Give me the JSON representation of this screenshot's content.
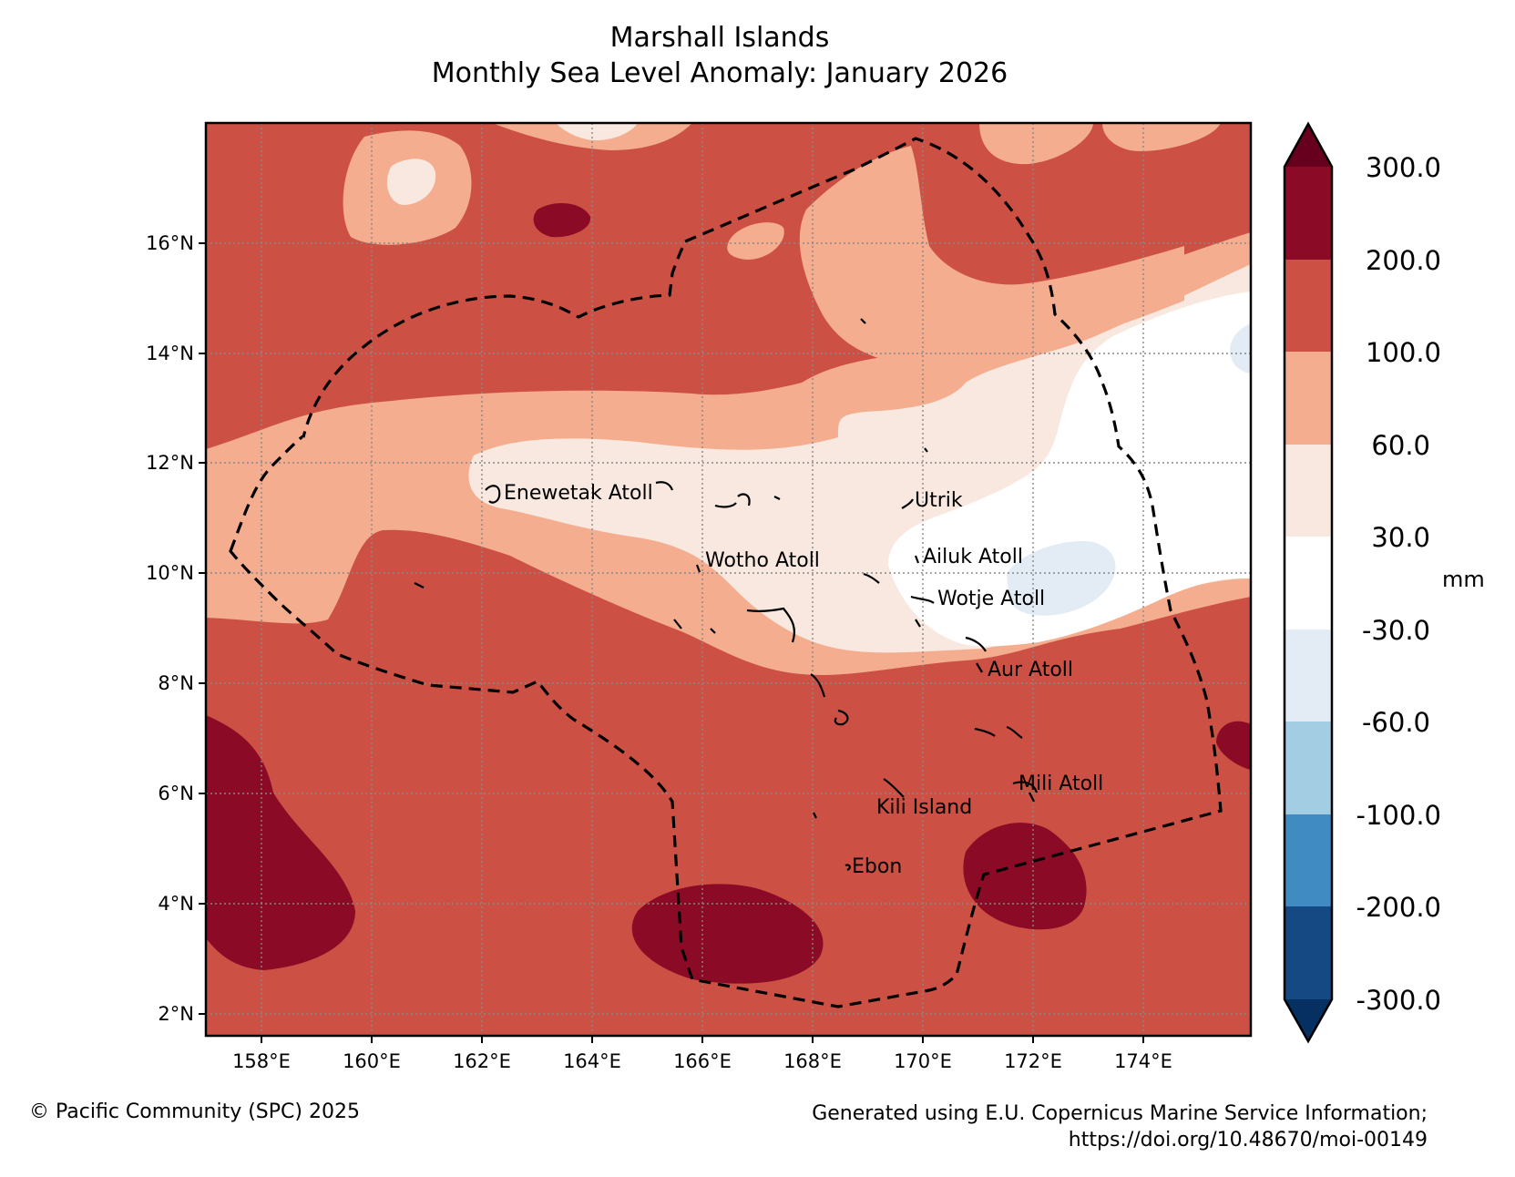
{
  "title": {
    "line1": "Marshall Islands",
    "line2": "Monthly Sea Level Anomaly: January 2026"
  },
  "map": {
    "lon_range": [
      157.0,
      176.0
    ],
    "lat_range": [
      1.6,
      18.2
    ],
    "x_ticks": [
      "158°E",
      "160°E",
      "162°E",
      "164°E",
      "166°E",
      "168°E",
      "170°E",
      "172°E",
      "174°E"
    ],
    "y_ticks": [
      "2°N",
      "4°N",
      "6°N",
      "8°N",
      "10°N",
      "12°N",
      "14°N",
      "16°N"
    ],
    "gridlines": true,
    "eez_boundary": "dashed",
    "places": [
      {
        "name": "Enewetak Atoll",
        "lon": 162.3,
        "lat": 11.4
      },
      {
        "name": "Wotho Atoll",
        "lon": 166.0,
        "lat": 10.2
      },
      {
        "name": "Utrik",
        "lon": 169.8,
        "lat": 11.2
      },
      {
        "name": "Ailuk Atoll",
        "lon": 169.9,
        "lat": 10.3
      },
      {
        "name": "Wotje Atoll",
        "lon": 170.2,
        "lat": 9.5
      },
      {
        "name": "Aur Atoll",
        "lon": 171.2,
        "lat": 8.2
      },
      {
        "name": "Mili Atoll",
        "lon": 171.9,
        "lat": 6.1
      },
      {
        "name": "Kili Island",
        "lon": 169.1,
        "lat": 5.6
      },
      {
        "name": "Ebon",
        "lon": 168.7,
        "lat": 4.6
      }
    ]
  },
  "colorbar": {
    "unit": "mm",
    "levels": [
      "300.0",
      "200.0",
      "100.0",
      "60.0",
      "30.0",
      "-30.0",
      "-60.0",
      "-100.0",
      "-200.0",
      "-300.0"
    ],
    "colors": {
      "above_300": "#67001f",
      "200_300": "#8b0a25",
      "100_200": "#cc5044",
      "60_100": "#f4ad8e",
      "30_60": "#f9e8df",
      "neg30_30": "#ffffff",
      "neg60_neg30": "#e3ecf5",
      "neg100_neg60": "#a3cde3",
      "neg200_neg100": "#408bc1",
      "neg300_neg200": "#144983",
      "below_neg300": "#053061"
    }
  },
  "footer": {
    "left": "© Pacific Community (SPC) 2025",
    "right_line1": "Generated using E.U. Copernicus Marine Service Information;",
    "right_line2": "https://doi.org/10.48670/moi-00149"
  }
}
